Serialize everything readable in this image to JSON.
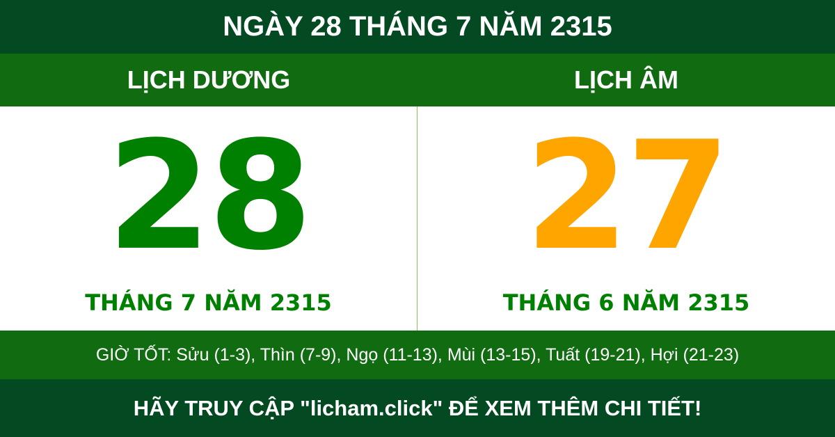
{
  "header": {
    "title": "NGÀY 28 THÁNG 7 NĂM 2315"
  },
  "solar": {
    "label": "LỊCH DƯƠNG",
    "day": "28",
    "month_year": "THÁNG 7 NĂM 2315"
  },
  "lunar": {
    "label": "LỊCH ÂM",
    "day": "27",
    "month_year": "THÁNG 6 NĂM 2315"
  },
  "good_hours": "GIỜ TỐT: Sửu (1-3), Thìn (7-9), Ngọ (11-13), Mùi (13-15), Tuất (19-21), Hợi (21-23)",
  "footer": "HÃY TRUY CẬP \"licham.click\" ĐỂ XEM THÊM CHI TIẾT!",
  "colors": {
    "dark_green": "#034a22",
    "green": "#116b11",
    "solar_number": "#008000",
    "lunar_number": "#ffa500"
  }
}
